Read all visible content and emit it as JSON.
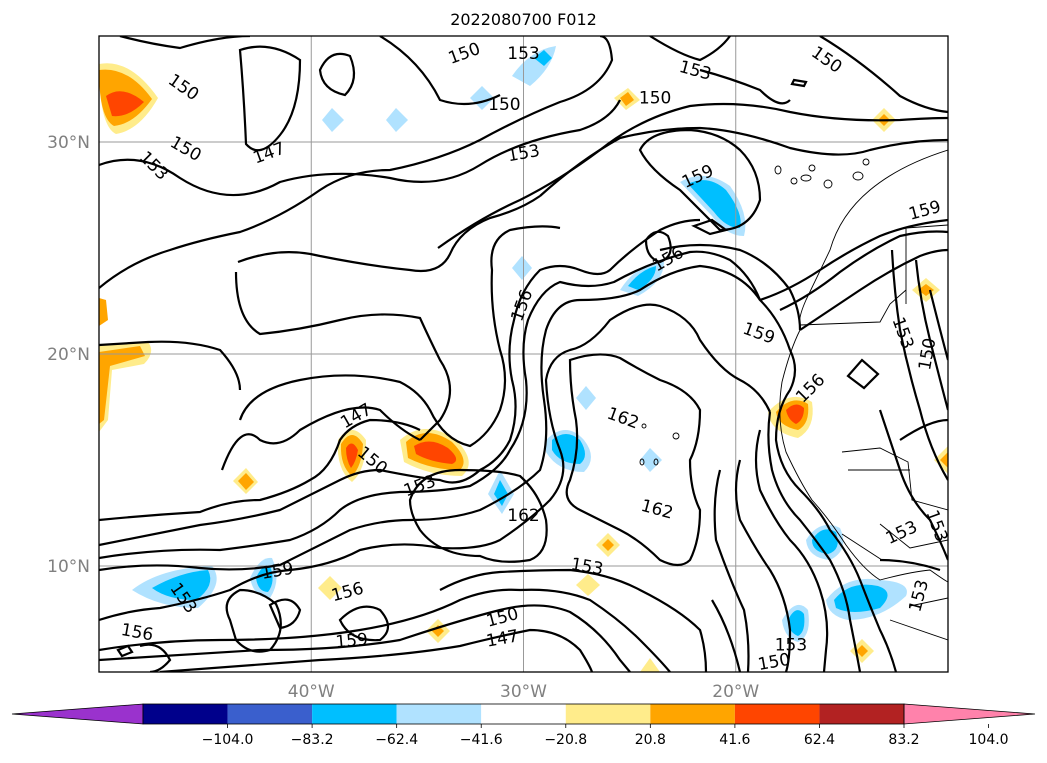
{
  "title": "2022080700 F012",
  "axes": {
    "lat_ticks": [
      {
        "value": 30,
        "label": "30°N"
      },
      {
        "value": 20,
        "label": "20°N"
      },
      {
        "value": 10,
        "label": "10°N"
      }
    ],
    "lon_ticks": [
      {
        "value": -40,
        "label": "40°W"
      },
      {
        "value": -30,
        "label": "30°W"
      },
      {
        "value": -20,
        "label": "20°W"
      }
    ],
    "lon_range": [
      -50,
      -10
    ],
    "lat_range": [
      5,
      35
    ],
    "grid": true
  },
  "contour_labels": [
    {
      "text": "150",
      "lon": -46,
      "lat": 32.6,
      "rot": 35
    },
    {
      "text": "153",
      "lon": -47.4,
      "lat": 28.9,
      "rot": 45
    },
    {
      "text": "150",
      "lon": -45.9,
      "lat": 29.7,
      "rot": 30
    },
    {
      "text": "147",
      "lon": -42,
      "lat": 29.5,
      "rot": -20
    },
    {
      "text": "150",
      "lon": -32.8,
      "lat": 34.2,
      "rot": -20
    },
    {
      "text": "153",
      "lon": -30,
      "lat": 34.2,
      "rot": 0
    },
    {
      "text": "150",
      "lon": -30.9,
      "lat": 31.8,
      "rot": 0
    },
    {
      "text": "153",
      "lon": -30,
      "lat": 29.5,
      "rot": -10
    },
    {
      "text": "150",
      "lon": -23.8,
      "lat": 32.1,
      "rot": 0
    },
    {
      "text": "153",
      "lon": -21.9,
      "lat": 33.4,
      "rot": 15
    },
    {
      "text": "150",
      "lon": -15.7,
      "lat": 33.9,
      "rot": 35
    },
    {
      "text": "159",
      "lon": -21.8,
      "lat": 28.4,
      "rot": -25
    },
    {
      "text": "159",
      "lon": -11.1,
      "lat": 26.8,
      "rot": -15
    },
    {
      "text": "156",
      "lon": -23.2,
      "lat": 24.5,
      "rot": -30
    },
    {
      "text": "156",
      "lon": -30.1,
      "lat": 22.3,
      "rot": -70
    },
    {
      "text": "159",
      "lon": -18.9,
      "lat": 21,
      "rot": 20
    },
    {
      "text": "153",
      "lon": -12.1,
      "lat": 21,
      "rot": 70
    },
    {
      "text": "150",
      "lon": -11,
      "lat": 20,
      "rot": -80
    },
    {
      "text": "156",
      "lon": -16.5,
      "lat": 18.4,
      "rot": -45
    },
    {
      "text": "162",
      "lon": -25.3,
      "lat": 17,
      "rot": 20
    },
    {
      "text": "147",
      "lon": -37.9,
      "lat": 17.1,
      "rot": -30
    },
    {
      "text": "150",
      "lon": -37.1,
      "lat": 15,
      "rot": 40
    },
    {
      "text": "153",
      "lon": -34.9,
      "lat": 13.8,
      "rot": -20
    },
    {
      "text": "162",
      "lon": -30,
      "lat": 12.4,
      "rot": 0
    },
    {
      "text": "162",
      "lon": -23.7,
      "lat": 12.7,
      "rot": 15
    },
    {
      "text": "153",
      "lon": -27,
      "lat": 10,
      "rot": 10
    },
    {
      "text": "159",
      "lon": -41.6,
      "lat": 9.8,
      "rot": -10
    },
    {
      "text": "153",
      "lon": -46,
      "lat": 8.5,
      "rot": 55
    },
    {
      "text": "156",
      "lon": -48.2,
      "lat": 6.9,
      "rot": 10
    },
    {
      "text": "156",
      "lon": -38.3,
      "lat": 8.8,
      "rot": -15
    },
    {
      "text": "159",
      "lon": -38.1,
      "lat": 6.5,
      "rot": -5
    },
    {
      "text": "150",
      "lon": -31,
      "lat": 7.6,
      "rot": -15
    },
    {
      "text": "147",
      "lon": -31,
      "lat": 6.6,
      "rot": -10
    },
    {
      "text": "153",
      "lon": -17.4,
      "lat": 6.3,
      "rot": 0
    },
    {
      "text": "150",
      "lon": -18.2,
      "lat": 5.5,
      "rot": -10
    },
    {
      "text": "153",
      "lon": -12.2,
      "lat": 11.6,
      "rot": -25
    },
    {
      "text": "153",
      "lon": -11.4,
      "lat": 8.6,
      "rot": -75
    },
    {
      "text": "153",
      "lon": -10.5,
      "lat": 11.9,
      "rot": 70
    }
  ],
  "colorbar": {
    "colors": [
      "#9a32cd",
      "#00008b",
      "#3a5fcd",
      "#00bfff",
      "#b0e2ff",
      "#ffffff",
      "#ffec8b",
      "#ffa500",
      "#ff4500",
      "#b22222",
      "#ff82ab"
    ],
    "ticks": [
      "−104.0",
      "−83.2",
      "−62.4",
      "−41.6",
      "−20.8",
      "20.8",
      "41.6",
      "62.4",
      "83.2",
      "104.0"
    ]
  }
}
